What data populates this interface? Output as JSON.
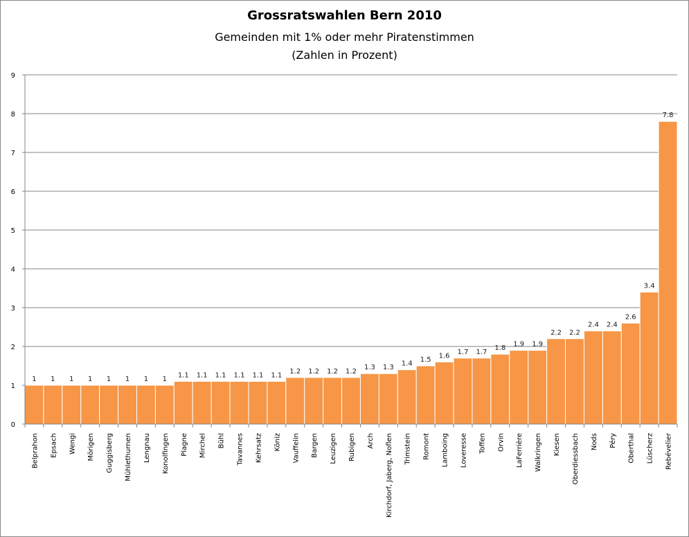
{
  "chart_data": {
    "type": "bar",
    "title": "Grossratswahlen Bern 2010",
    "subtitle": "Gemeinden mit 1% oder mehr Piratenstimmen",
    "subtitle2": "(Zahlen in Prozent)",
    "xlabel": "",
    "ylabel": "",
    "ylim": [
      0,
      9
    ],
    "yticks": [
      0,
      1,
      2,
      3,
      4,
      5,
      6,
      7,
      8,
      9
    ],
    "grid": true,
    "bar_color": "#F79646",
    "categories": [
      "Belprahon",
      "Epsach",
      "Wengi",
      "Mörigen",
      "Guggisberg",
      "Mühlethurnen",
      "Lengnau",
      "Konolfingen",
      "Plagne",
      "Mirchel",
      "Bühl",
      "Tavannes",
      "Kehrsatz",
      "Köniz",
      "Vauffelin",
      "Bargen",
      "Leuzigen",
      "Rubigen",
      "Arch",
      "Kirchdorf, Jaberg, Noflen",
      "Trimstein",
      "Romont",
      "Lamboing",
      "Loveresse",
      "Toffen",
      "Orvin",
      "LaFerrière",
      "Walkringen",
      "Kiesen",
      "Oberdiessbach",
      "Nods",
      "Péry",
      "Oberthal",
      "Lüscherz",
      "Rebévelier"
    ],
    "values": [
      1,
      1,
      1,
      1,
      1,
      1,
      1,
      1,
      1.1,
      1.1,
      1.1,
      1.1,
      1.1,
      1.1,
      1.2,
      1.2,
      1.2,
      1.2,
      1.3,
      1.3,
      1.4,
      1.5,
      1.6,
      1.7,
      1.7,
      1.8,
      1.9,
      1.9,
      2.2,
      2.2,
      2.4,
      2.4,
      2.6,
      3.4,
      7.8
    ]
  }
}
